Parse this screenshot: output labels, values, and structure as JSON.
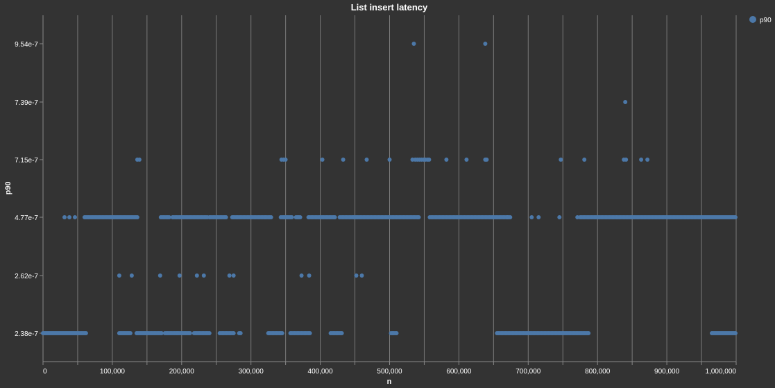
{
  "chart_data": {
    "type": "scatter",
    "title": "List insert latency",
    "xlabel": "n",
    "ylabel": "p90",
    "legend": {
      "position": "top-right",
      "entries": [
        "p90"
      ]
    },
    "colors": {
      "background": "#333333",
      "point": "#4c78a8",
      "text": "#ffffff",
      "grid": "#7a7a7a"
    },
    "grid": true,
    "xlim": [
      0,
      1000000
    ],
    "y_scale": "ordinal",
    "x_ticks": [
      {
        "value": 0,
        "label": "0"
      },
      {
        "value": 100000,
        "label": "100,000"
      },
      {
        "value": 200000,
        "label": "200,000"
      },
      {
        "value": 300000,
        "label": "300,000"
      },
      {
        "value": 400000,
        "label": "400,000"
      },
      {
        "value": 500000,
        "label": "500,000"
      },
      {
        "value": 600000,
        "label": "600,000"
      },
      {
        "value": 700000,
        "label": "700,000"
      },
      {
        "value": 800000,
        "label": "800,000"
      },
      {
        "value": 900000,
        "label": "900,000"
      },
      {
        "value": 1000000,
        "label": "1,000,000"
      }
    ],
    "y_categories": [
      "2.38e-7",
      "2.62e-7",
      "4.77e-7",
      "7.15e-7",
      "7.39e-7",
      "9.54e-7"
    ],
    "series": [
      {
        "name": "p90",
        "x_ranges": [
          {
            "y": "2.38e-7",
            "ranges": [
              [
                0,
                62000
              ],
              [
                110000,
                126000
              ],
              [
                135000,
                172000
              ],
              [
                176000,
                212000
              ],
              [
                218000,
                240000
              ],
              [
                255000,
                275000
              ],
              [
                283000,
                286000
              ],
              [
                325000,
                345000
              ],
              [
                357000,
                385000
              ],
              [
                415000,
                432000
              ],
              [
                502000,
                510000
              ],
              [
                655000,
                787000
              ],
              [
                965000,
                1000000
              ]
            ]
          },
          {
            "y": "4.77e-7",
            "ranges": [
              [
                60000,
                137000
              ],
              [
                170000,
                182000
              ],
              [
                187000,
                238000
              ],
              [
                240000,
                265000
              ],
              [
                273000,
                330000
              ],
              [
                343000,
                360000
              ],
              [
                365000,
                372000
              ],
              [
                383000,
                422000
              ],
              [
                428000,
                543000
              ],
              [
                558000,
                675000
              ],
              [
                775000,
                1000000
              ]
            ]
          }
        ],
        "points": [
          {
            "x": 31000,
            "y": "4.77e-7"
          },
          {
            "x": 38000,
            "y": "4.77e-7"
          },
          {
            "x": 46000,
            "y": "4.77e-7"
          },
          {
            "x": 110000,
            "y": "2.62e-7"
          },
          {
            "x": 128000,
            "y": "2.62e-7"
          },
          {
            "x": 169000,
            "y": "2.62e-7"
          },
          {
            "x": 197000,
            "y": "2.62e-7"
          },
          {
            "x": 222000,
            "y": "2.62e-7"
          },
          {
            "x": 232000,
            "y": "2.62e-7"
          },
          {
            "x": 269000,
            "y": "2.62e-7"
          },
          {
            "x": 275000,
            "y": "2.62e-7"
          },
          {
            "x": 373000,
            "y": "2.62e-7"
          },
          {
            "x": 384000,
            "y": "2.62e-7"
          },
          {
            "x": 452000,
            "y": "2.62e-7"
          },
          {
            "x": 460000,
            "y": "2.62e-7"
          },
          {
            "x": 136000,
            "y": "7.15e-7"
          },
          {
            "x": 139000,
            "y": "7.15e-7"
          },
          {
            "x": 344000,
            "y": "7.15e-7"
          },
          {
            "x": 347000,
            "y": "7.15e-7"
          },
          {
            "x": 350000,
            "y": "7.15e-7"
          },
          {
            "x": 403000,
            "y": "7.15e-7"
          },
          {
            "x": 433000,
            "y": "7.15e-7"
          },
          {
            "x": 467000,
            "y": "7.15e-7"
          },
          {
            "x": 500000,
            "y": "7.15e-7"
          },
          {
            "x": 533000,
            "y": "7.15e-7"
          },
          {
            "x": 537000,
            "y": "7.15e-7"
          },
          {
            "x": 540000,
            "y": "7.15e-7"
          },
          {
            "x": 543000,
            "y": "7.15e-7"
          },
          {
            "x": 546000,
            "y": "7.15e-7"
          },
          {
            "x": 549000,
            "y": "7.15e-7"
          },
          {
            "x": 552000,
            "y": "7.15e-7"
          },
          {
            "x": 555000,
            "y": "7.15e-7"
          },
          {
            "x": 557000,
            "y": "7.15e-7"
          },
          {
            "x": 582000,
            "y": "7.15e-7"
          },
          {
            "x": 611000,
            "y": "7.15e-7"
          },
          {
            "x": 638000,
            "y": "7.15e-7"
          },
          {
            "x": 640000,
            "y": "7.15e-7"
          },
          {
            "x": 747000,
            "y": "7.15e-7"
          },
          {
            "x": 781000,
            "y": "7.15e-7"
          },
          {
            "x": 838000,
            "y": "7.15e-7"
          },
          {
            "x": 841000,
            "y": "7.15e-7"
          },
          {
            "x": 863000,
            "y": "7.15e-7"
          },
          {
            "x": 872000,
            "y": "7.15e-7"
          },
          {
            "x": 840000,
            "y": "7.39e-7"
          },
          {
            "x": 535000,
            "y": "9.54e-7"
          },
          {
            "x": 638000,
            "y": "9.54e-7"
          },
          {
            "x": 670000,
            "y": "4.77e-7"
          },
          {
            "x": 705000,
            "y": "4.77e-7"
          },
          {
            "x": 715000,
            "y": "4.77e-7"
          },
          {
            "x": 745000,
            "y": "4.77e-7"
          },
          {
            "x": 771000,
            "y": "4.77e-7"
          }
        ]
      }
    ]
  }
}
